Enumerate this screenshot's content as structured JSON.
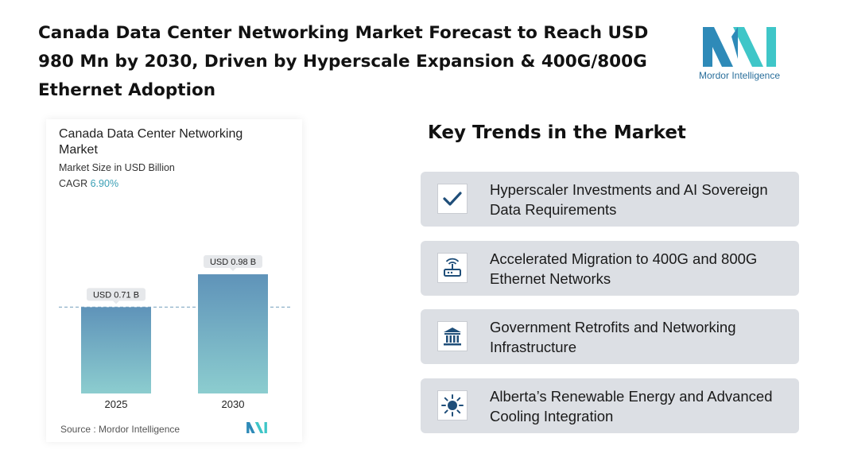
{
  "header": {
    "title": "Canada Data Center Networking Market Forecast to Reach USD 980 Mn by 2030, Driven by Hyperscale Expansion & 400G/800G Ethernet Adoption"
  },
  "logo": {
    "text": "Mordor Intelligence",
    "colors": {
      "left": "#2e8ab8",
      "right": "#3fc6c8",
      "text": "#2a6f9b"
    }
  },
  "chart_data": {
    "type": "bar",
    "title": "Canada Data Center Networking Market",
    "subtitle": "Market Size in USD Billion",
    "cagr_label": "CAGR",
    "cagr_value": "6.90%",
    "categories": [
      "2025",
      "2030"
    ],
    "values": [
      0.71,
      0.98
    ],
    "data_labels": [
      "USD 0.71 B",
      "USD 0.98 B"
    ],
    "ylim": [
      0,
      1.0
    ],
    "reference_line": 0.71,
    "grid": false,
    "bar_color_top": "#5f93b9",
    "bar_color_bottom": "#8ccdcf",
    "source": "Source :  Mordor Intelligence"
  },
  "trends": {
    "heading": "Key Trends in the Market",
    "items": [
      {
        "label": "Hyperscaler Investments and AI Sovereign Data Requirements",
        "icon": "checkmark-icon"
      },
      {
        "label": "Accelerated Migration to 400G and 800G Ethernet Networks",
        "icon": "router-icon"
      },
      {
        "label": "Government Retrofits and Networking Infrastructure",
        "icon": "government-building-icon"
      },
      {
        "label": "Alberta’s Renewable Energy and Advanced Cooling Integration",
        "icon": "sun-icon"
      }
    ],
    "icon_color": "#1f4e79",
    "card_color": "#dcdfe4"
  }
}
